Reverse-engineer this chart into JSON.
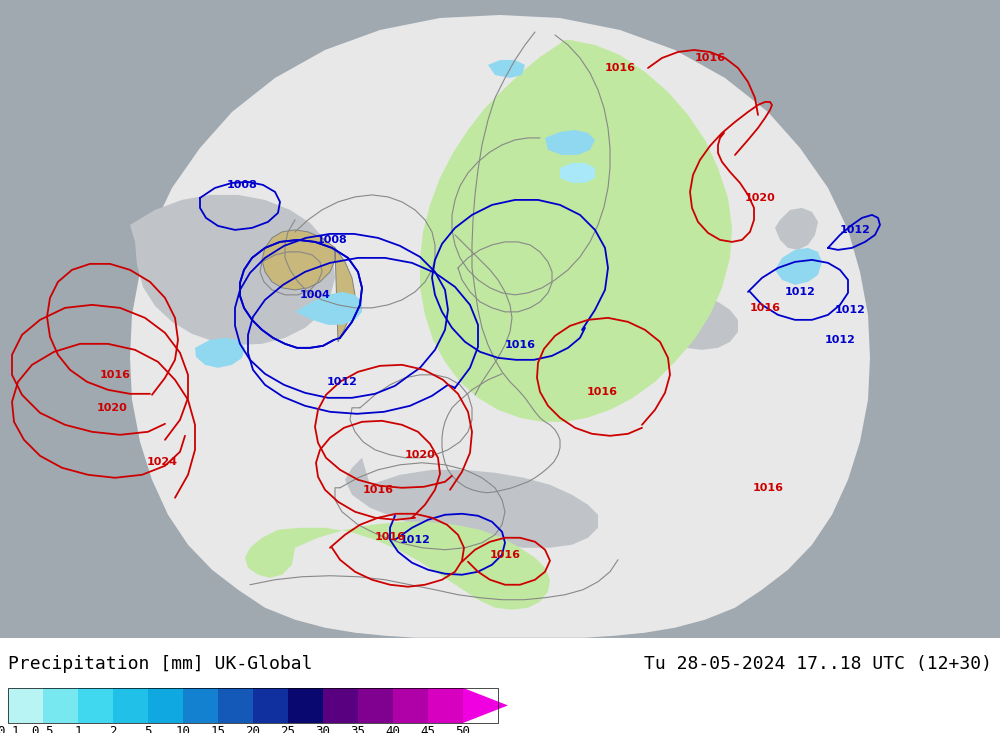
{
  "title_left": "Precipitation [mm] UK-Global",
  "title_right": "Tu 28-05-2024 17..18 UTC (12+30)",
  "cb_colors": [
    "#b8f4f4",
    "#78e8f0",
    "#40d8ee",
    "#20c0e8",
    "#10a8e0",
    "#1480d0",
    "#1458b8",
    "#1030a0",
    "#080870",
    "#580080",
    "#800090",
    "#b000a8",
    "#d800c0",
    "#f000e0"
  ],
  "cb_labels": [
    "0.1",
    "0.5",
    "1",
    "2",
    "5",
    "10",
    "15",
    "20",
    "25",
    "30",
    "35",
    "40",
    "45",
    "50"
  ],
  "bg_color": "#c8b87c",
  "ocean_color": "#a8a8a8",
  "forecast_bg": "#e0e0e0",
  "green_color": "#b8e890",
  "cyan_color": "#90d8f0",
  "font_size_title": 13,
  "font_size_ticks": 10
}
